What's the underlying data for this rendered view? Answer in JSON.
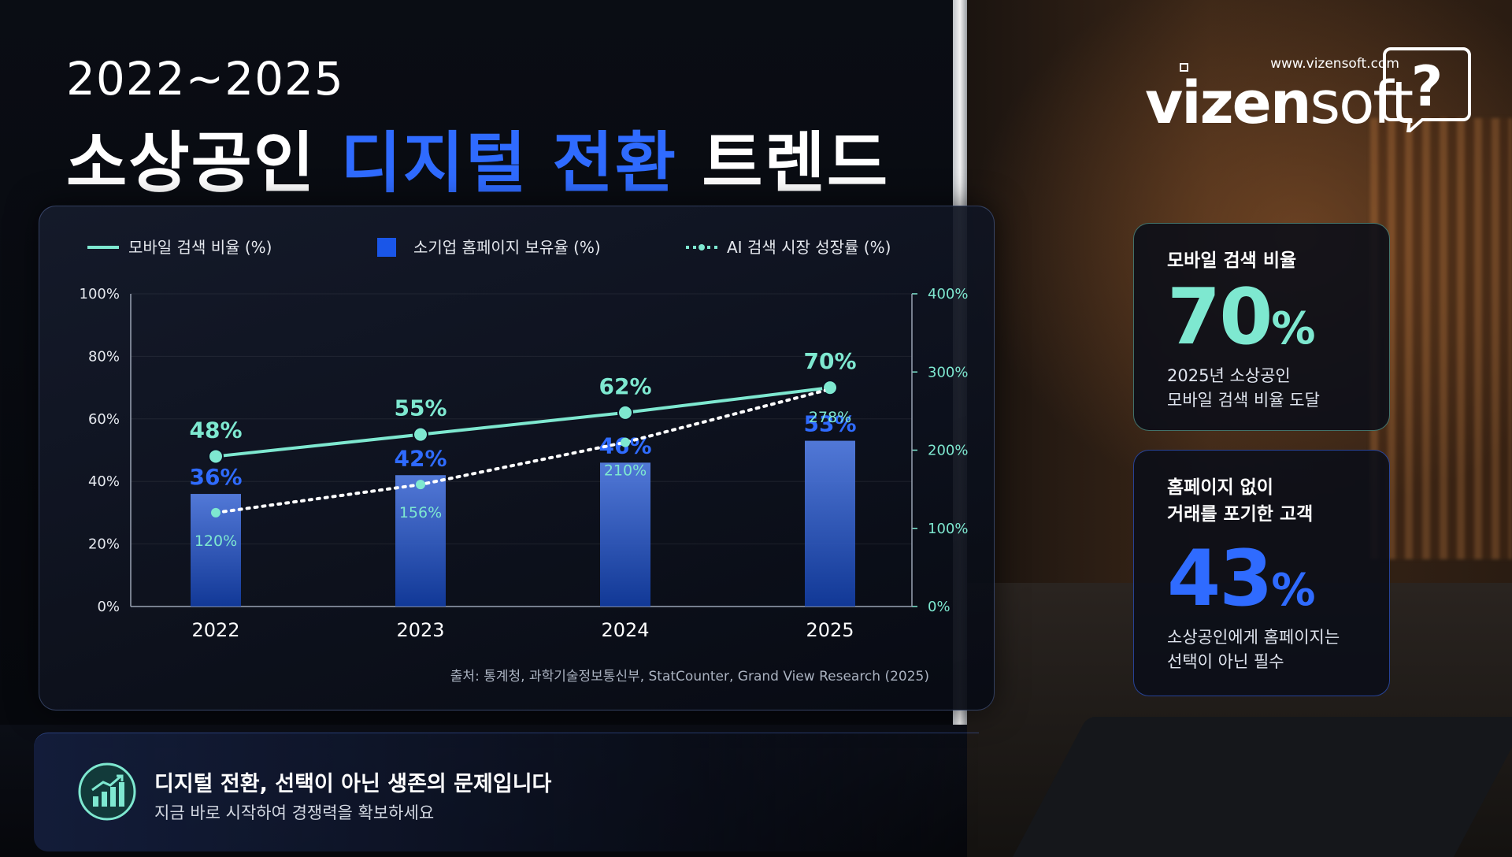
{
  "header": {
    "subtitle": "2022~2025",
    "title_parts": [
      "소상공인",
      "디지털 전환",
      "트렌드"
    ]
  },
  "logo": {
    "url": "www.vizensoft.com",
    "name_bold": "vizen",
    "name_light": "soft",
    "mark": "?"
  },
  "chart_data": {
    "type": "bar",
    "categories": [
      "2022",
      "2023",
      "2024",
      "2025"
    ],
    "series": [
      {
        "name": "모바일 검색 비율 (%)",
        "type": "line",
        "style": "solid",
        "color": "#7ee8d0",
        "values": [
          48,
          55,
          62,
          70
        ],
        "value_labels": [
          "48%",
          "55%",
          "62%",
          "70%"
        ]
      },
      {
        "name": "소기업 홈페이지 보유율 (%)",
        "type": "bar",
        "color": "#1a56e8",
        "values": [
          36,
          42,
          46,
          53
        ],
        "value_labels": [
          "36%",
          "42%",
          "46%",
          "53%"
        ]
      },
      {
        "name": "AI 검색 시장 성장률 (%)",
        "type": "line",
        "style": "dotted",
        "axis": "y2",
        "color": "#7ee8d0",
        "values": [
          120,
          156,
          210,
          278
        ],
        "value_labels": [
          "120%",
          "156%",
          "210%",
          "278%"
        ]
      }
    ],
    "ylim": [
      0,
      100
    ],
    "yticks": [
      {
        "value": 0,
        "label": "0%"
      },
      {
        "value": 20,
        "label": "20%"
      },
      {
        "value": 40,
        "label": "40%"
      },
      {
        "value": 60,
        "label": "60%"
      },
      {
        "value": 80,
        "label": "80%"
      },
      {
        "value": 100,
        "label": "100%"
      }
    ],
    "y2lim": [
      0,
      400
    ],
    "y2ticks": [
      {
        "value": 0,
        "label": "0%"
      },
      {
        "value": 100,
        "label": "100%"
      },
      {
        "value": 200,
        "label": "200%"
      },
      {
        "value": 300,
        "label": "300%"
      },
      {
        "value": 400,
        "label": "400%"
      }
    ],
    "grid": true,
    "legend": "top",
    "source": "출처: 통계청, 과학기술정보통신부, StatCounter, Grand View Research (2025)"
  },
  "cards": [
    {
      "title_lines": [
        "모바일 검색 비율"
      ],
      "value": "70",
      "unit": "%",
      "desc_lines": [
        "2025년 소상공인",
        "모바일 검색 비율 도달"
      ]
    },
    {
      "title_lines": [
        "홈페이지 없이",
        "거래를 포기한 고객"
      ],
      "value": "43",
      "unit": "%",
      "desc_lines": [
        "소상공인에게 홈페이지는",
        "선택이 아닌 필수"
      ]
    }
  ],
  "footer": {
    "headline": "디지털 전환, 선택이 아닌 생존의 문제입니다",
    "subline": "지금 바로 시작하여 경쟁력을 확보하세요"
  }
}
